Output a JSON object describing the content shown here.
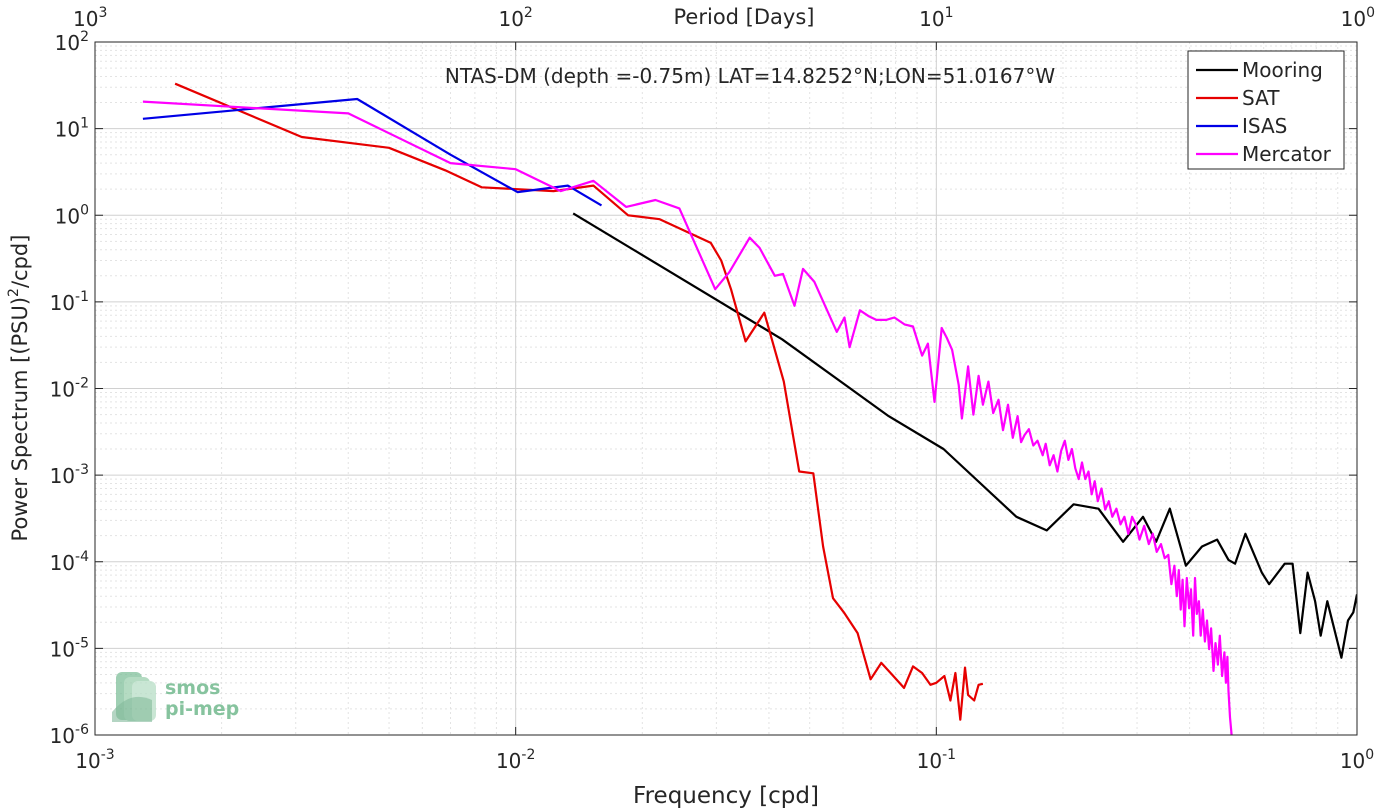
{
  "chart_data": {
    "type": "line",
    "title": "NTAS-DM (depth =-0.75m) LAT=14.8252°N;LON=51.0167°W",
    "xlabel": "Frequency [cpd]",
    "ylabel": "Power Spectrum [(PSU)²/cpd]",
    "ylabel_main": "Power Spectrum [(PSU)",
    "ylabel_sup": "2",
    "ylabel_tail": "/cpd]",
    "top_xlabel": "Period [Days]",
    "xscale": "log",
    "yscale": "log",
    "xlim": [
      0.001,
      1
    ],
    "ylim": [
      1e-06,
      100
    ],
    "grid": true,
    "legend_position": "top-right",
    "x_ticks": [
      {
        "value": 0.001,
        "base": "10",
        "exp": "-3"
      },
      {
        "value": 0.01,
        "base": "10",
        "exp": "-2"
      },
      {
        "value": 0.1,
        "base": "10",
        "exp": "-1"
      },
      {
        "value": 1,
        "base": "10",
        "exp": "0"
      }
    ],
    "top_ticks": [
      {
        "period": 1000,
        "base": "10",
        "exp": "3"
      },
      {
        "period": 100,
        "base": "10",
        "exp": "2"
      },
      {
        "period": 10,
        "base": "10",
        "exp": "1"
      },
      {
        "period": 1,
        "base": "10",
        "exp": "0"
      }
    ],
    "y_ticks": [
      {
        "value": 1e-06,
        "base": "10",
        "exp": "-6"
      },
      {
        "value": 1e-05,
        "base": "10",
        "exp": "-5"
      },
      {
        "value": 0.0001,
        "base": "10",
        "exp": "-4"
      },
      {
        "value": 0.001,
        "base": "10",
        "exp": "-3"
      },
      {
        "value": 0.01,
        "base": "10",
        "exp": "-2"
      },
      {
        "value": 0.1,
        "base": "10",
        "exp": "-1"
      },
      {
        "value": 1,
        "base": "10",
        "exp": "0"
      },
      {
        "value": 10,
        "base": "10",
        "exp": "1"
      },
      {
        "value": 100,
        "base": "10",
        "exp": "2"
      }
    ],
    "series": [
      {
        "name": "Mooring",
        "color": "#000000",
        "points": [
          [
            0.0137,
            1.05
          ],
          [
            0.043,
            0.037
          ],
          [
            0.077,
            0.0048
          ],
          [
            0.104,
            0.002
          ],
          [
            0.155,
            0.00033
          ],
          [
            0.183,
            0.00023
          ],
          [
            0.212,
            0.00046
          ],
          [
            0.243,
            0.00041
          ],
          [
            0.278,
            0.00017
          ],
          [
            0.31,
            0.00033
          ],
          [
            0.333,
            0.00017
          ],
          [
            0.359,
            0.00041
          ],
          [
            0.392,
            9e-05
          ],
          [
            0.428,
            0.00015
          ],
          [
            0.465,
            0.00018
          ],
          [
            0.495,
            0.000105
          ],
          [
            0.513,
            9.5e-05
          ],
          [
            0.543,
            0.00021
          ],
          [
            0.594,
            7.5e-05
          ],
          [
            0.618,
            5.5e-05
          ],
          [
            0.673,
            9.5e-05
          ],
          [
            0.703,
            9.5e-05
          ],
          [
            0.733,
            1.5e-05
          ],
          [
            0.763,
            7.5e-05
          ],
          [
            0.795,
            3.5e-05
          ],
          [
            0.82,
            1.4e-05
          ],
          [
            0.85,
            3.5e-05
          ],
          [
            0.88,
            1.8e-05
          ],
          [
            0.918,
            7.8e-06
          ],
          [
            0.952,
            2.1e-05
          ],
          [
            0.98,
            2.6e-05
          ],
          [
            1.0,
            4.2e-05
          ]
        ]
      },
      {
        "name": "SAT",
        "color": "#e60000",
        "points": [
          [
            0.00155,
            33
          ],
          [
            0.0031,
            8.0
          ],
          [
            0.005,
            6.0
          ],
          [
            0.0068,
            3.3
          ],
          [
            0.0083,
            2.1
          ],
          [
            0.0101,
            2.0
          ],
          [
            0.0123,
            1.9
          ],
          [
            0.0153,
            2.2
          ],
          [
            0.0185,
            1.0
          ],
          [
            0.022,
            0.9
          ],
          [
            0.0291,
            0.48
          ],
          [
            0.0308,
            0.3
          ],
          [
            0.0325,
            0.14
          ],
          [
            0.0352,
            0.035
          ],
          [
            0.039,
            0.075
          ],
          [
            0.0434,
            0.012
          ],
          [
            0.0472,
            0.0011
          ],
          [
            0.051,
            0.00105
          ],
          [
            0.0538,
            0.00015
          ],
          [
            0.0568,
            3.8e-05
          ],
          [
            0.0603,
            2.6e-05
          ],
          [
            0.065,
            1.5e-05
          ],
          [
            0.0698,
            4.4e-06
          ],
          [
            0.074,
            6.8e-06
          ],
          [
            0.079,
            4.8e-06
          ],
          [
            0.0838,
            3.5e-06
          ],
          [
            0.088,
            6.2e-06
          ],
          [
            0.0925,
            5.2e-06
          ],
          [
            0.0968,
            3.8e-06
          ],
          [
            0.1,
            4e-06
          ],
          [
            0.1045,
            4.8e-06
          ],
          [
            0.108,
            2.5e-06
          ],
          [
            0.111,
            5.2e-06
          ],
          [
            0.114,
            1.5e-06
          ],
          [
            0.117,
            6e-06
          ],
          [
            0.119,
            2.9e-06
          ],
          [
            0.123,
            2.5e-06
          ],
          [
            0.126,
            3.8e-06
          ],
          [
            0.129,
            3.9e-06
          ]
        ]
      },
      {
        "name": "ISAS",
        "color": "#0000e6",
        "points": [
          [
            0.0013,
            13.0
          ],
          [
            0.0042,
            22.0
          ],
          [
            0.007,
            5.0
          ],
          [
            0.0101,
            1.85
          ],
          [
            0.0133,
            2.2
          ],
          [
            0.016,
            1.3
          ]
        ]
      },
      {
        "name": "Mercator",
        "color": "#ff00ff",
        "points": [
          [
            0.0013,
            20.5
          ],
          [
            0.004,
            15.0
          ],
          [
            0.007,
            4.0
          ],
          [
            0.01,
            3.4
          ],
          [
            0.0128,
            1.9
          ],
          [
            0.0153,
            2.5
          ],
          [
            0.0183,
            1.25
          ],
          [
            0.0215,
            1.5
          ],
          [
            0.0245,
            1.2
          ],
          [
            0.0298,
            0.14
          ],
          [
            0.0322,
            0.22
          ],
          [
            0.036,
            0.55
          ],
          [
            0.038,
            0.42
          ],
          [
            0.0413,
            0.2
          ],
          [
            0.0432,
            0.21
          ],
          [
            0.046,
            0.09
          ],
          [
            0.0482,
            0.24
          ],
          [
            0.0513,
            0.17
          ],
          [
            0.055,
            0.08
          ],
          [
            0.058,
            0.045
          ],
          [
            0.0605,
            0.066
          ],
          [
            0.0622,
            0.03
          ],
          [
            0.0658,
            0.08
          ],
          [
            0.0692,
            0.068
          ],
          [
            0.072,
            0.062
          ],
          [
            0.076,
            0.062
          ],
          [
            0.0795,
            0.066
          ],
          [
            0.084,
            0.055
          ],
          [
            0.088,
            0.052
          ],
          [
            0.0925,
            0.024
          ],
          [
            0.0955,
            0.033
          ],
          [
            0.099,
            0.007
          ],
          [
            0.103,
            0.05
          ],
          [
            0.106,
            0.038
          ],
          [
            0.109,
            0.028
          ],
          [
            0.113,
            0.011
          ],
          [
            0.115,
            0.0045
          ],
          [
            0.119,
            0.018
          ],
          [
            0.1225,
            0.005
          ],
          [
            0.126,
            0.014
          ],
          [
            0.129,
            0.0065
          ],
          [
            0.133,
            0.012
          ],
          [
            0.1365,
            0.0052
          ],
          [
            0.1405,
            0.0074
          ],
          [
            0.144,
            0.0033
          ],
          [
            0.148,
            0.0065
          ],
          [
            0.152,
            0.0027
          ],
          [
            0.156,
            0.0048
          ],
          [
            0.159,
            0.0024
          ],
          [
            0.162,
            0.0029
          ],
          [
            0.166,
            0.0034
          ],
          [
            0.17,
            0.0022
          ],
          [
            0.174,
            0.0025
          ],
          [
            0.179,
            0.0017
          ],
          [
            0.182,
            0.0023
          ],
          [
            0.186,
            0.0013
          ],
          [
            0.19,
            0.0017
          ],
          [
            0.194,
            0.0011
          ],
          [
            0.198,
            0.0019
          ],
          [
            0.202,
            0.0025
          ],
          [
            0.206,
            0.0015
          ],
          [
            0.21,
            0.002
          ],
          [
            0.214,
            0.0012
          ],
          [
            0.218,
            0.0009
          ],
          [
            0.222,
            0.0014
          ],
          [
            0.226,
            0.0009
          ],
          [
            0.23,
            0.0011
          ],
          [
            0.234,
            0.0006
          ],
          [
            0.238,
            0.00085
          ],
          [
            0.242,
            0.0005
          ],
          [
            0.247,
            0.0007
          ],
          [
            0.252,
            0.0004
          ],
          [
            0.257,
            0.0005
          ],
          [
            0.262,
            0.00033
          ],
          [
            0.268,
            0.00041
          ],
          [
            0.274,
            0.00027
          ],
          [
            0.28,
            0.00033
          ],
          [
            0.286,
            0.00021
          ],
          [
            0.292,
            0.00033
          ],
          [
            0.298,
            0.00027
          ],
          [
            0.304,
            0.00018
          ],
          [
            0.312,
            0.00026
          ],
          [
            0.32,
            0.00016
          ],
          [
            0.327,
            0.00021
          ],
          [
            0.334,
            0.00013
          ],
          [
            0.342,
            0.00016
          ],
          [
            0.349,
            0.00011
          ],
          [
            0.356,
            0.00012
          ],
          [
            0.362,
            5.5e-05
          ],
          [
            0.368,
            9e-05
          ],
          [
            0.373,
            4e-05
          ],
          [
            0.377,
            8e-05
          ],
          [
            0.381,
            2.8e-05
          ],
          [
            0.385,
            6.2e-05
          ],
          [
            0.389,
            1.8e-05
          ],
          [
            0.394,
            6.5e-05
          ],
          [
            0.399,
            2.9e-05
          ],
          [
            0.403,
            4.8e-05
          ],
          [
            0.408,
            1.4e-05
          ],
          [
            0.412,
            6.5e-05
          ],
          [
            0.416,
            2.5e-05
          ],
          [
            0.421,
            3.5e-05
          ],
          [
            0.425,
            1.4e-05
          ],
          [
            0.43,
            2.8e-05
          ],
          [
            0.435,
            1.2e-05
          ],
          [
            0.44,
            2.1e-05
          ],
          [
            0.445,
            9.8e-06
          ],
          [
            0.45,
            1.7e-05
          ],
          [
            0.456,
            5.5e-06
          ],
          [
            0.461,
            1.15e-05
          ],
          [
            0.467,
            6.5e-06
          ],
          [
            0.472,
            1.4e-05
          ],
          [
            0.478,
            4.8e-06
          ],
          [
            0.484,
            9e-06
          ],
          [
            0.488,
            4e-06
          ],
          [
            0.492,
            8e-06
          ],
          [
            0.495,
            3.2e-06
          ],
          [
            0.499,
            1.6e-06
          ],
          [
            0.504,
            9.5e-07
          ]
        ]
      }
    ]
  },
  "logo": {
    "line1": "smos",
    "line2": "pi-mep"
  }
}
